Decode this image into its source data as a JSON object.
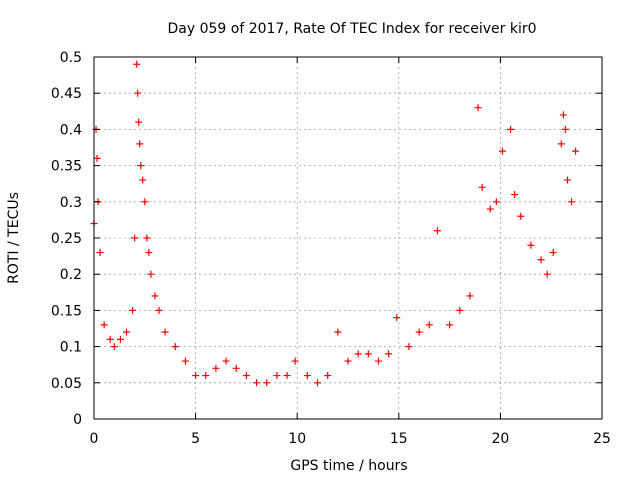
{
  "chart_data": {
    "type": "scatter",
    "title": "Day 059 of 2017, Rate Of TEC Index for receiver kir0",
    "xlabel": "GPS time / hours",
    "ylabel": "ROTI / TECUs",
    "xlim": [
      0,
      25
    ],
    "ylim": [
      0,
      0.5
    ],
    "x_ticks": [
      "0",
      "5",
      "10",
      "15",
      "20",
      "25"
    ],
    "y_ticks": [
      "0",
      "0.05",
      "0.1",
      "0.15",
      "0.2",
      "0.25",
      "0.3",
      "0.35",
      "0.4",
      "0.45",
      "0.5"
    ],
    "grid": true,
    "legend": "none",
    "marker": "+",
    "color": "#ff0000",
    "series": [
      {
        "x": [
          0.0,
          0.1,
          0.15,
          0.2,
          0.3,
          0.5,
          0.8,
          1.0,
          1.3,
          1.6,
          1.9,
          2.0,
          2.1,
          2.15,
          2.2,
          2.25,
          2.3,
          2.4,
          2.5,
          2.6,
          2.7,
          2.8,
          3.0,
          3.2,
          3.5,
          4.0,
          4.5,
          5.0,
          5.5,
          6.0,
          6.5,
          7.0,
          7.5,
          8.0,
          8.5,
          9.0,
          9.5,
          9.9,
          10.5,
          11.0,
          11.5,
          12.0,
          12.5,
          13.0,
          13.5,
          14.0,
          14.5,
          14.9,
          15.5,
          16.0,
          16.5,
          16.9,
          17.5,
          18.0,
          18.5,
          18.9,
          19.1,
          19.5,
          19.8,
          20.1,
          20.5,
          20.7,
          21.0,
          21.5,
          22.0,
          22.3,
          22.6,
          23.0,
          23.1,
          23.2,
          23.3,
          23.5,
          23.7
        ],
        "y": [
          0.27,
          0.4,
          0.36,
          0.3,
          0.23,
          0.13,
          0.11,
          0.1,
          0.11,
          0.12,
          0.15,
          0.25,
          0.49,
          0.45,
          0.41,
          0.38,
          0.35,
          0.33,
          0.3,
          0.25,
          0.23,
          0.2,
          0.17,
          0.15,
          0.12,
          0.1,
          0.08,
          0.06,
          0.06,
          0.07,
          0.08,
          0.07,
          0.06,
          0.05,
          0.05,
          0.06,
          0.06,
          0.08,
          0.06,
          0.05,
          0.06,
          0.12,
          0.08,
          0.09,
          0.09,
          0.08,
          0.09,
          0.14,
          0.1,
          0.12,
          0.13,
          0.26,
          0.13,
          0.15,
          0.17,
          0.43,
          0.32,
          0.29,
          0.3,
          0.37,
          0.4,
          0.31,
          0.28,
          0.24,
          0.22,
          0.2,
          0.23,
          0.38,
          0.42,
          0.4,
          0.33,
          0.3,
          0.37
        ]
      }
    ]
  }
}
